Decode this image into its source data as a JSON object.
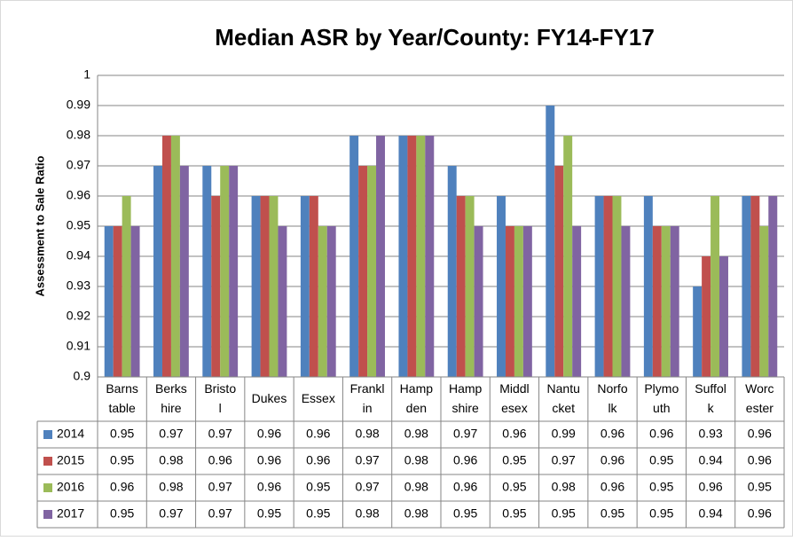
{
  "chart_data": {
    "type": "bar",
    "title": "Median ASR by Year/County: FY14-FY17",
    "y_label": "Assessment to Sale Ratio",
    "categories": [
      "Barns\ntable",
      "Berks\nhire",
      "Bristo\nl",
      "Dukes",
      "Essex",
      "Frankl\nin",
      "Hamp\nden",
      "Hamp\nshire",
      "Middl\nesex",
      "Nantu\ncket",
      "Norfo\nlk",
      "Plymo\nuth",
      "Suffol\nk",
      "Worc\nester"
    ],
    "series": [
      {
        "name": "2014",
        "color": "#4f81bd",
        "values": [
          0.95,
          0.97,
          0.97,
          0.96,
          0.96,
          0.98,
          0.98,
          0.97,
          0.96,
          0.99,
          0.96,
          0.96,
          0.93,
          0.96
        ]
      },
      {
        "name": "2015",
        "color": "#c0504d",
        "values": [
          0.95,
          0.98,
          0.96,
          0.96,
          0.96,
          0.97,
          0.98,
          0.96,
          0.95,
          0.97,
          0.96,
          0.95,
          0.94,
          0.96
        ]
      },
      {
        "name": "2016",
        "color": "#9bbb59",
        "values": [
          0.96,
          0.98,
          0.97,
          0.96,
          0.95,
          0.97,
          0.98,
          0.96,
          0.95,
          0.98,
          0.96,
          0.95,
          0.96,
          0.95
        ]
      },
      {
        "name": "2017",
        "color": "#8064a2",
        "values": [
          0.95,
          0.97,
          0.97,
          0.95,
          0.95,
          0.98,
          0.98,
          0.95,
          0.95,
          0.95,
          0.95,
          0.95,
          0.94,
          0.96
        ]
      }
    ],
    "ylim": [
      0.9,
      1
    ],
    "yticks": [
      0.9,
      0.91,
      0.92,
      0.93,
      0.94,
      0.95,
      0.96,
      0.97,
      0.98,
      0.99,
      1
    ],
    "grid": true
  }
}
